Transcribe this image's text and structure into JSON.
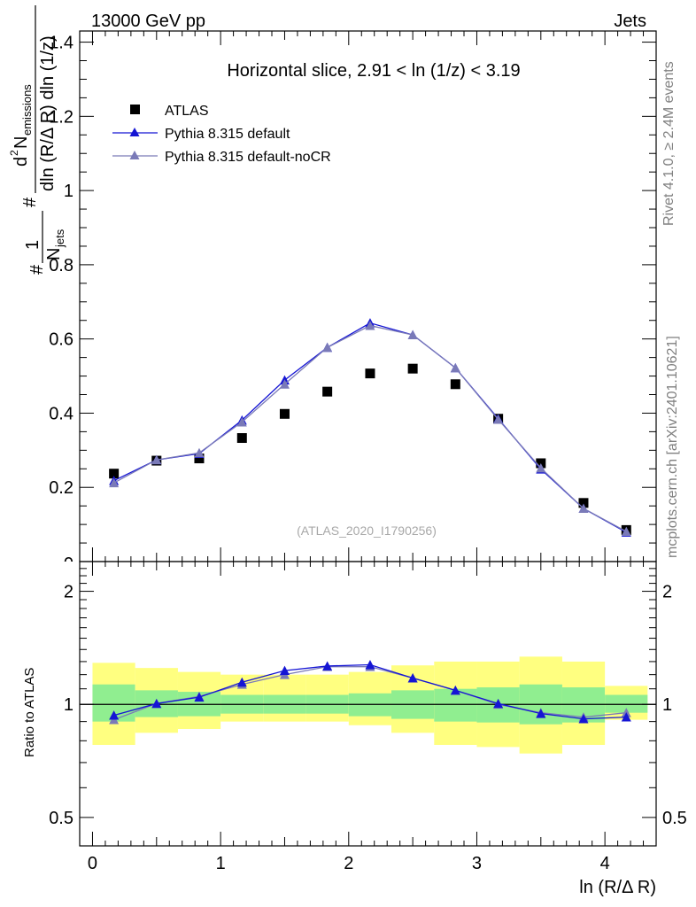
{
  "header": {
    "left": "13000 GeV pp",
    "right": "Jets"
  },
  "side_text": {
    "rivet": "Rivet 4.1.0, ≥ 2.4M events",
    "mcplots": "mcplots.cern.ch [arXiv:2401.10621]"
  },
  "chart_data": {
    "type": "scatter",
    "title": "Horizontal slice, 2.91 < ln (1/z) < 3.19",
    "watermark": "(ATLAS_2020_I1790256)",
    "xlabel": "ln (R/Δ R)",
    "ylabel_main": "1/N_jets d²N_emissions / dln(R/ΔR) dln(1/z)",
    "ylabel_ratio": "Ratio to ATLAS",
    "xlim": [
      -0.1,
      4.4
    ],
    "ylim_main": [
      0,
      1.43
    ],
    "ylim_ratio": [
      0.42,
      2.4
    ],
    "ratio_log": true,
    "x_ticks": [
      "0",
      "1",
      "2",
      "3",
      "4"
    ],
    "y_ticks_main": [
      "0.2",
      "0.4",
      "0.6",
      "0.8",
      "1",
      "1.2",
      "1.4"
    ],
    "y_ticks_ratio": [
      "0.5",
      "1",
      "2"
    ],
    "bin_edges": [
      0,
      0.333,
      0.667,
      1.0,
      1.333,
      1.667,
      2.0,
      2.333,
      2.667,
      3.0,
      3.333,
      3.667,
      4.0,
      4.333
    ],
    "x": [
      0.167,
      0.5,
      0.833,
      1.167,
      1.5,
      1.833,
      2.167,
      2.5,
      2.833,
      3.167,
      3.5,
      3.833,
      4.167
    ],
    "legend": [
      "ATLAS",
      "Pythia 8.315 default",
      "Pythia 8.315 default-noCR"
    ],
    "series": [
      {
        "name": "ATLAS",
        "marker": "square",
        "color": "#000000",
        "values": [
          0.237,
          0.272,
          0.278,
          0.333,
          0.398,
          0.458,
          0.507,
          0.52,
          0.478,
          0.385,
          0.265,
          0.158,
          0.085
        ]
      },
      {
        "name": "Pythia 8.315 default",
        "marker": "triangle",
        "color": "#1515d4",
        "values": [
          0.218,
          0.274,
          0.291,
          0.381,
          0.489,
          0.577,
          0.643,
          0.611,
          0.522,
          0.385,
          0.249,
          0.143,
          0.079
        ]
      },
      {
        "name": "Pythia 8.315 default-noCR",
        "marker": "triangle",
        "color": "#7a7ab8",
        "values": [
          0.212,
          0.274,
          0.293,
          0.376,
          0.478,
          0.577,
          0.636,
          0.611,
          0.522,
          0.383,
          0.252,
          0.143,
          0.081
        ]
      }
    ],
    "ratio_series": [
      {
        "name": "Pythia 8.315 default",
        "values": [
          0.935,
          1.005,
          1.045,
          1.145,
          1.23,
          1.265,
          1.275,
          1.175,
          1.09,
          1.005,
          0.945,
          0.915,
          0.925
        ]
      },
      {
        "name": "Pythia 8.315 default-noCR",
        "values": [
          0.91,
          1.005,
          1.05,
          1.13,
          1.2,
          1.26,
          1.26,
          1.175,
          1.09,
          1.0,
          0.95,
          0.925,
          0.95
        ]
      }
    ],
    "band_inner": {
      "lo": [
        0.9,
        0.925,
        0.93,
        0.945,
        0.945,
        0.945,
        0.93,
        0.915,
        0.9,
        0.895,
        0.885,
        0.895,
        0.95
      ],
      "hi": [
        1.13,
        1.09,
        1.08,
        1.06,
        1.06,
        1.06,
        1.07,
        1.09,
        1.1,
        1.11,
        1.13,
        1.11,
        1.06
      ]
    },
    "band_outer": {
      "lo": [
        0.78,
        0.84,
        0.86,
        0.9,
        0.9,
        0.9,
        0.88,
        0.84,
        0.78,
        0.77,
        0.74,
        0.78,
        0.91
      ],
      "hi": [
        1.29,
        1.25,
        1.22,
        1.2,
        1.2,
        1.2,
        1.22,
        1.27,
        1.3,
        1.3,
        1.34,
        1.3,
        1.12
      ]
    },
    "colors": {
      "band_inner": "#90ee90",
      "band_outer": "#ffff80",
      "ref_line": "#000000"
    }
  }
}
